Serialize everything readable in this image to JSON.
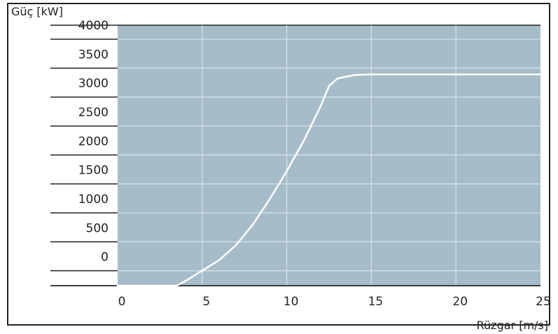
{
  "chart_data": {
    "type": "line",
    "ylabel": "Güç [kW]",
    "xlabel": "Rüzgar [m/s]",
    "x_ticks": [
      "0",
      "5",
      "10",
      "15",
      "20",
      "25"
    ],
    "y_ticks": [
      "4000",
      "3500",
      "3000",
      "2500",
      "2000",
      "1500",
      "1000",
      "500",
      "0"
    ],
    "xlim": [
      0,
      25
    ],
    "grid": true,
    "legend": "none",
    "colors": {
      "plot_background": "#a6bcc9",
      "grid": "#d6e0e7",
      "line": "#ffffff",
      "tick_band": "#ffffff"
    },
    "series": [
      {
        "x": [
          0,
          3.5,
          4,
          5,
          6,
          7,
          8,
          9,
          10,
          11,
          12,
          12.5,
          13,
          14,
          15,
          20,
          25
        ],
        "y": [
          -500,
          -500,
          -420,
          -240,
          -60,
          200,
          560,
          1000,
          1480,
          2000,
          2600,
          2950,
          3080,
          3140,
          3150,
          3150,
          3150
        ]
      }
    ]
  }
}
